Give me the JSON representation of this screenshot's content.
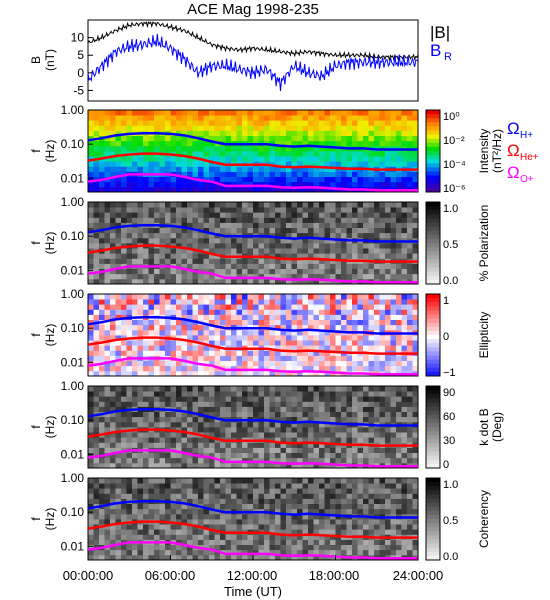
{
  "title": "ACE Mag 1998-235",
  "xlabel": "Time (UT)",
  "x_ticks": [
    "00:00:00",
    "06:00:00",
    "12:00:00",
    "18:00:00",
    "24:00:00"
  ],
  "colors": {
    "b_mag": "#000000",
    "b_r": "#0000ff",
    "h_plus": "#0000ff",
    "he_plus": "#ff0000",
    "o_plus": "#ff00ff"
  },
  "chart_data": [
    {
      "type": "line",
      "panel": "magnetic-field",
      "ylabel": "B (nT)",
      "ylabel_top": "B",
      "ylabel_bottom": "(nT)",
      "yticks": [
        "10",
        "5",
        "0",
        "-5"
      ],
      "ylim": [
        -8,
        15
      ],
      "xlim": [
        0,
        24
      ],
      "x": [
        0,
        1,
        2,
        3,
        4,
        5,
        6,
        7,
        8,
        9,
        10,
        11,
        12,
        13,
        14,
        15,
        16,
        17,
        18,
        19,
        20,
        21,
        22,
        23,
        24
      ],
      "series": [
        {
          "name": "|B|",
          "values": [
            8.5,
            10,
            12,
            13.5,
            14,
            14,
            13,
            12,
            10,
            8,
            7,
            6.5,
            7,
            6.5,
            6,
            5.5,
            6,
            5.5,
            5,
            5,
            5,
            4.5,
            4.5,
            4.5,
            4.5
          ]
        },
        {
          "name": "B",
          "subscript": "R",
          "values": [
            -2,
            2,
            6,
            7.5,
            8,
            9,
            7,
            4,
            0,
            2,
            2,
            1,
            0,
            1,
            -3,
            2,
            0,
            -1,
            2,
            3,
            3,
            3,
            3,
            3,
            3
          ]
        }
      ]
    },
    {
      "type": "heatmap",
      "panel": "power-spectrum",
      "ylabel_top": "f",
      "ylabel_bottom": "(Hz)",
      "yticks": [
        "1.00",
        "0.10",
        "0.01"
      ],
      "colorbar_label": "Intensity (nT²/Hz)",
      "colorbar_label_1": "Intensity",
      "colorbar_label_2": "(nT²/Hz)",
      "colorbar_ticks": [
        "10⁰",
        "10⁻²",
        "10⁻⁴",
        "10⁻⁶"
      ],
      "colorscale": "rainbow",
      "legend": [
        {
          "symbol": "Ω",
          "sub": "H+"
        },
        {
          "symbol": "Ω",
          "sub": "He+"
        },
        {
          "symbol": "Ω",
          "sub": "O+"
        }
      ]
    },
    {
      "type": "heatmap",
      "panel": "polarization",
      "ylabel_top": "f",
      "ylabel_bottom": "(Hz)",
      "yticks": [
        "1.00",
        "0.10",
        "0.01"
      ],
      "colorbar_label": "% Polarization",
      "colorbar_ticks": [
        "1.0",
        "0.5",
        "0.0"
      ],
      "colorscale": "gray"
    },
    {
      "type": "heatmap",
      "panel": "ellipticity",
      "ylabel_top": "f",
      "ylabel_bottom": "(Hz)",
      "yticks": [
        "1.00",
        "0.10",
        "0.01"
      ],
      "colorbar_label": "Ellipticity",
      "colorbar_ticks": [
        "1",
        "0",
        "−1"
      ],
      "colorscale": "red-white-blue"
    },
    {
      "type": "heatmap",
      "panel": "k-dot-b",
      "ylabel_top": "f",
      "ylabel_bottom": "(Hz)",
      "yticks": [
        "1.00",
        "0.10",
        "0.01"
      ],
      "colorbar_label": "k dot B (Deg)",
      "colorbar_label_1": "k dot B",
      "colorbar_label_2": "(Deg)",
      "colorbar_ticks": [
        "90",
        "60",
        "30",
        "0"
      ],
      "colorscale": "gray"
    },
    {
      "type": "heatmap",
      "panel": "coherency",
      "ylabel_top": "f",
      "ylabel_bottom": "(Hz)",
      "yticks": [
        "1.00",
        "0.10",
        "0.01"
      ],
      "colorbar_label": "Coherency",
      "colorbar_ticks": [
        "1.0",
        "0.5",
        "0.0"
      ],
      "colorscale": "gray"
    }
  ],
  "gyrofrequency_lines": {
    "x": [
      0,
      1,
      2,
      3,
      4,
      5,
      6,
      7,
      8,
      9,
      10,
      11,
      12,
      13,
      14,
      15,
      16,
      17,
      18,
      19,
      20,
      21,
      22,
      23,
      24
    ],
    "H+": [
      0.13,
      0.15,
      0.18,
      0.2,
      0.21,
      0.21,
      0.2,
      0.18,
      0.15,
      0.12,
      0.1,
      0.1,
      0.1,
      0.1,
      0.09,
      0.085,
      0.09,
      0.085,
      0.08,
      0.075,
      0.075,
      0.07,
      0.07,
      0.07,
      0.07
    ],
    "He+": [
      0.033,
      0.038,
      0.045,
      0.05,
      0.053,
      0.053,
      0.05,
      0.045,
      0.038,
      0.03,
      0.025,
      0.025,
      0.025,
      0.025,
      0.022,
      0.021,
      0.022,
      0.021,
      0.02,
      0.019,
      0.019,
      0.018,
      0.018,
      0.018,
      0.018
    ],
    "O+": [
      0.008,
      0.009,
      0.011,
      0.013,
      0.013,
      0.013,
      0.013,
      0.011,
      0.009,
      0.008,
      0.006,
      0.006,
      0.006,
      0.006,
      0.0055,
      0.0053,
      0.0055,
      0.0053,
      0.005,
      0.0047,
      0.0047,
      0.0045,
      0.0045,
      0.0045,
      0.0045
    ]
  }
}
